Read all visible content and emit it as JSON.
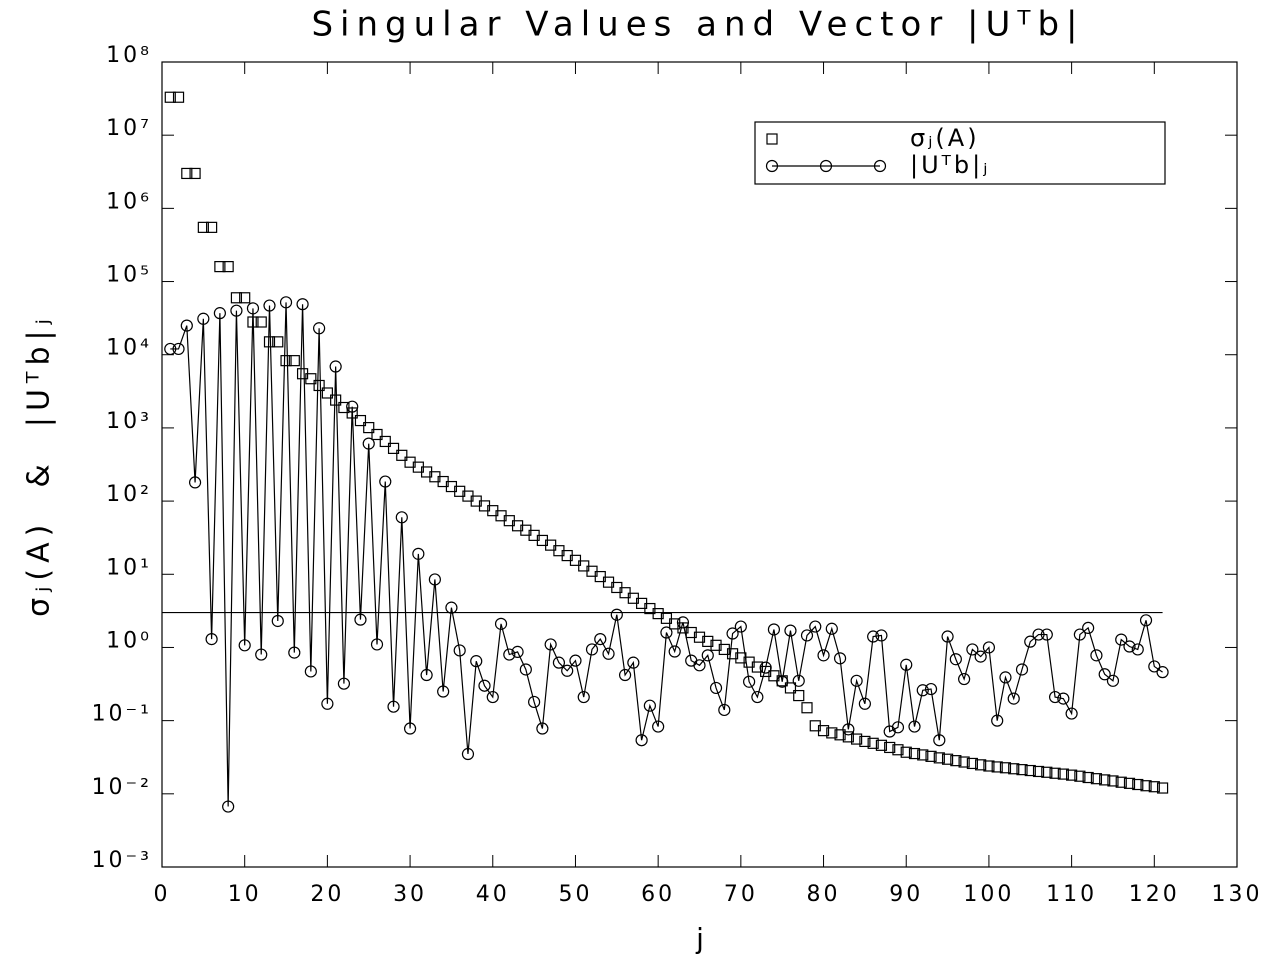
{
  "chart_data": {
    "type": "scatter",
    "title": "Singular Values and Vector |Uᵀb|",
    "x_label": "j",
    "y_label": "σⱼ(A)  &  |Uᵀb|ⱼ",
    "yscale": "log",
    "xlim": [
      0,
      130
    ],
    "ylim": [
      0.001,
      100000000
    ],
    "xticks": [
      0,
      10,
      20,
      30,
      40,
      50,
      60,
      70,
      80,
      90,
      100,
      110,
      120,
      130
    ],
    "yticks": [
      {
        "value": 0.001,
        "label": "10⁻³"
      },
      {
        "value": 0.01,
        "label": "10⁻²"
      },
      {
        "value": 0.1,
        "label": "10⁻¹"
      },
      {
        "value": 1,
        "label": "10⁰"
      },
      {
        "value": 10,
        "label": "10¹"
      },
      {
        "value": 100,
        "label": "10²"
      },
      {
        "value": 1000,
        "label": "10³"
      },
      {
        "value": 10000,
        "label": "10⁴"
      },
      {
        "value": 100000,
        "label": "10⁵"
      },
      {
        "value": 1000000,
        "label": "10⁶"
      },
      {
        "value": 10000000,
        "label": "10⁷"
      },
      {
        "value": 100000000,
        "label": "10⁸"
      }
    ],
    "reference_line": 3,
    "legend": "upper right",
    "x": [
      1,
      2,
      3,
      4,
      5,
      6,
      7,
      8,
      9,
      10,
      11,
      12,
      13,
      14,
      15,
      16,
      17,
      18,
      19,
      20,
      21,
      22,
      23,
      24,
      25,
      26,
      27,
      28,
      29,
      30,
      31,
      32,
      33,
      34,
      35,
      36,
      37,
      38,
      39,
      40,
      41,
      42,
      43,
      44,
      45,
      46,
      47,
      48,
      49,
      50,
      51,
      52,
      53,
      54,
      55,
      56,
      57,
      58,
      59,
      60,
      61,
      62,
      63,
      64,
      65,
      66,
      67,
      68,
      69,
      70,
      71,
      72,
      73,
      74,
      75,
      76,
      77,
      78,
      79,
      80,
      81,
      82,
      83,
      84,
      85,
      86,
      87,
      88,
      89,
      90,
      91,
      92,
      93,
      94,
      95,
      96,
      97,
      98,
      99,
      100,
      101,
      102,
      103,
      104,
      105,
      106,
      107,
      108,
      109,
      110,
      111,
      112,
      113,
      114,
      115,
      116,
      117,
      118,
      119,
      120,
      121
    ],
    "series": [
      {
        "name": "σⱼ(A)",
        "color": "#000000",
        "marker": "square",
        "line": false,
        "values": [
          33000000,
          33000000,
          3000000,
          3000000,
          550000,
          550000,
          160000,
          160000,
          60000,
          60000,
          28000,
          28000,
          15000,
          15000,
          8300,
          8300,
          5500,
          4700,
          3800,
          3000,
          2400,
          1900,
          1600,
          1260,
          1010,
          813,
          653,
          525,
          422,
          340,
          291,
          250,
          215,
          185,
          158,
          136,
          117,
          100,
          86,
          74,
          63,
          54,
          46,
          40,
          34,
          29,
          25,
          21,
          18,
          15.5,
          13,
          11,
          9.3,
          7.8,
          6.6,
          5.6,
          4.7,
          4.0,
          3.4,
          2.9,
          2.5,
          2.1,
          1.85,
          1.6,
          1.38,
          1.21,
          1.07,
          0.94,
          0.82,
          0.72,
          0.63,
          0.54,
          0.47,
          0.41,
          0.35,
          0.28,
          0.22,
          0.15,
          0.085,
          0.073,
          0.068,
          0.064,
          0.06,
          0.056,
          0.052,
          0.049,
          0.046,
          0.043,
          0.04,
          0.037,
          0.0355,
          0.034,
          0.0325,
          0.031,
          0.0297,
          0.0284,
          0.0272,
          0.026,
          0.0249,
          0.024,
          0.0233,
          0.0227,
          0.022,
          0.0214,
          0.0208,
          0.0202,
          0.0197,
          0.0191,
          0.0186,
          0.018,
          0.0174,
          0.0167,
          0.0161,
          0.0155,
          0.015,
          0.0144,
          0.0139,
          0.0134,
          0.0129,
          0.0125,
          0.012
        ]
      },
      {
        "name": "|Uᵀb|ⱼ",
        "color": "#000000",
        "marker": "circle",
        "line": true,
        "values": [
          12000,
          12000,
          25000,
          180,
          31000,
          1.3,
          37000,
          0.0067,
          40000,
          1.07,
          43000,
          0.8,
          47000,
          2.3,
          52000,
          0.85,
          49000,
          0.47,
          23000,
          0.17,
          6900,
          0.32,
          1950,
          2.4,
          610,
          1.1,
          185,
          0.155,
          60,
          0.078,
          19,
          0.42,
          8.5,
          0.25,
          3.5,
          0.91,
          0.035,
          0.65,
          0.3,
          0.21,
          2.1,
          0.8,
          0.87,
          0.5,
          0.18,
          0.078,
          1.1,
          0.62,
          0.48,
          0.66,
          0.21,
          0.94,
          1.3,
          0.82,
          2.8,
          0.42,
          0.62,
          0.054,
          0.16,
          0.083,
          1.6,
          0.88,
          2.2,
          0.66,
          0.57,
          0.78,
          0.28,
          0.14,
          1.55,
          1.93,
          0.34,
          0.21,
          0.53,
          1.76,
          0.34,
          1.7,
          0.35,
          1.46,
          1.93,
          0.78,
          1.8,
          0.71,
          0.076,
          0.35,
          0.17,
          1.41,
          1.46,
          0.071,
          0.081,
          0.58,
          0.083,
          0.26,
          0.27,
          0.054,
          1.41,
          0.69,
          0.37,
          0.94,
          0.75,
          1.0,
          0.1,
          0.39,
          0.2,
          0.5,
          1.2,
          1.5,
          1.5,
          0.21,
          0.2,
          0.125,
          1.5,
          1.85,
          0.78,
          0.43,
          0.35,
          1.28,
          1.03,
          0.94,
          2.35,
          0.55,
          0.46
        ]
      }
    ]
  }
}
